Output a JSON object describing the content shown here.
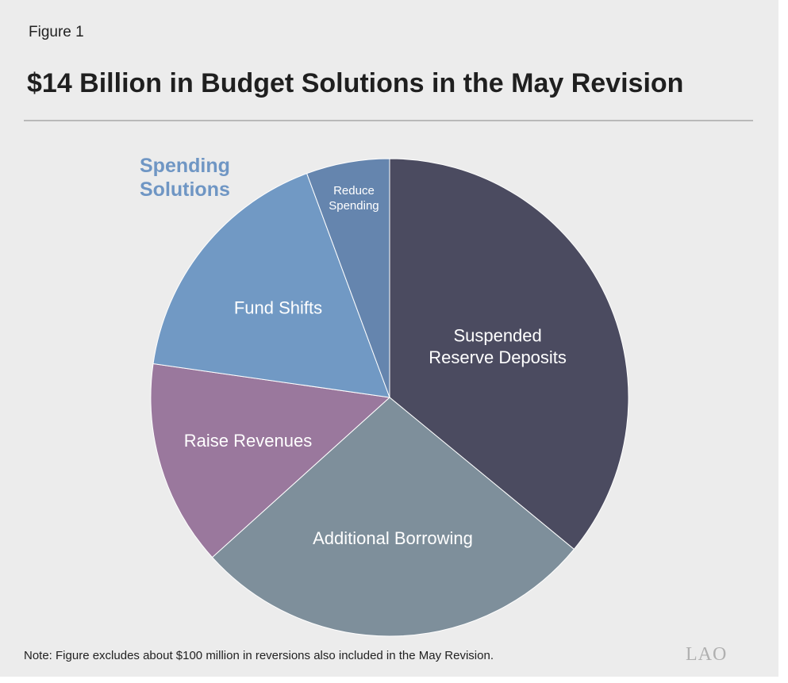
{
  "figure_label": "Figure 1",
  "title": "$14 Billion in Budget Solutions in the May Revision",
  "group_label": {
    "line1": "Spending",
    "line2": "Solutions"
  },
  "note": "Note: Figure excludes about $100 million in reversions also included in the May Revision.",
  "logo_text": "LAO",
  "chart_data": {
    "type": "pie",
    "title": "$14 Billion in Budget Solutions in the May Revision",
    "start_angle_deg": 0,
    "direction": "clockwise",
    "slices": [
      {
        "label": [
          "Suspended",
          "Reserve Deposits"
        ],
        "value": 35.1,
        "color": "#4b4b60",
        "text_color": "#ffffff"
      },
      {
        "label": [
          "Additional Borrowing"
        ],
        "value": 26.7,
        "color": "#7e8f9b",
        "text_color": "#ffffff"
      },
      {
        "label": [
          "Raise Revenues"
        ],
        "value": 13.6,
        "color": "#9a789d",
        "text_color": "#ffffff"
      },
      {
        "label": [
          "Fund Shifts"
        ],
        "value": 16.7,
        "color": "#7199c4",
        "text_color": "#ffffff"
      },
      {
        "label": [
          "Reduce",
          "Spending"
        ],
        "value": 5.5,
        "color": "#6585ae",
        "text_color": "#ffffff"
      }
    ],
    "group": {
      "name": "Spending Solutions",
      "members": [
        "Fund Shifts",
        "Reduce Spending"
      ]
    }
  }
}
